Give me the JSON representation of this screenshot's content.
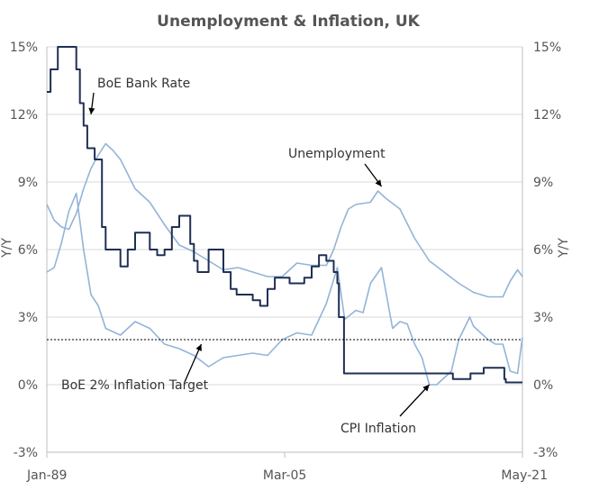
{
  "chart_data": {
    "type": "line",
    "title": "Unemployment & Inflation, UK",
    "ylabel_left": "Y/Y",
    "ylabel_right": "Y/Y",
    "ylim": [
      -3,
      15
    ],
    "yticks": [
      -3,
      0,
      3,
      6,
      9,
      12,
      15
    ],
    "ytick_labels": [
      "-3%",
      "0%",
      "3%",
      "6%",
      "9%",
      "12%",
      "15%"
    ],
    "xlim": [
      1989.0,
      2021.33
    ],
    "xtick_positions": [
      1989.0,
      2005.17,
      2021.33
    ],
    "xtick_labels": [
      "Jan-89",
      "Mar-05",
      "May-21"
    ],
    "grid": "horizontal",
    "series": [
      {
        "name": "Unemployment",
        "color": "#93b4d8",
        "x": [
          1989.0,
          1989.5,
          1990.0,
          1990.5,
          1991.0,
          1991.5,
          1992.0,
          1992.5,
          1993.0,
          1993.5,
          1994.0,
          1995.0,
          1996.0,
          1997.0,
          1998.0,
          1999.0,
          2000.0,
          2001.0,
          2002.0,
          2003.0,
          2004.0,
          2005.0,
          2006.0,
          2007.0,
          2008.0,
          2008.5,
          2009.0,
          2009.5,
          2010.0,
          2011.0,
          2011.5,
          2012.0,
          2013.0,
          2014.0,
          2015.0,
          2016.0,
          2017.0,
          2018.0,
          2019.0,
          2020.0,
          2020.5,
          2021.0,
          2021.33
        ],
        "values": [
          8.0,
          7.3,
          7.0,
          6.9,
          7.6,
          8.7,
          9.6,
          10.2,
          10.7,
          10.4,
          10.0,
          8.7,
          8.1,
          7.1,
          6.2,
          5.9,
          5.5,
          5.1,
          5.2,
          5.0,
          4.8,
          4.8,
          5.4,
          5.3,
          5.3,
          6.0,
          7.0,
          7.8,
          8.0,
          8.1,
          8.6,
          8.3,
          7.8,
          6.5,
          5.5,
          5.0,
          4.5,
          4.1,
          3.9,
          3.9,
          4.6,
          5.1,
          4.8
        ]
      },
      {
        "name": "CPI Inflation",
        "color": "#93b4d8",
        "x": [
          1989.0,
          1989.5,
          1990.0,
          1990.5,
          1991.0,
          1991.5,
          1992.0,
          1992.5,
          1993.0,
          1994.0,
          1995.0,
          1996.0,
          1997.0,
          1998.0,
          1999.0,
          2000.0,
          2001.0,
          2002.0,
          2003.0,
          2004.0,
          2005.0,
          2006.0,
          2007.0,
          2008.0,
          2008.75,
          2009.25,
          2010.0,
          2010.5,
          2011.0,
          2011.75,
          2012.5,
          2013.0,
          2013.5,
          2014.0,
          2014.5,
          2015.0,
          2015.5,
          2016.0,
          2016.5,
          2017.0,
          2017.75,
          2018.0,
          2019.0,
          2019.5,
          2020.0,
          2020.5,
          2021.0,
          2021.33
        ],
        "values": [
          5.0,
          5.2,
          6.3,
          7.7,
          8.5,
          6.0,
          4.0,
          3.5,
          2.5,
          2.2,
          2.8,
          2.5,
          1.8,
          1.6,
          1.3,
          0.8,
          1.2,
          1.3,
          1.4,
          1.3,
          2.0,
          2.3,
          2.2,
          3.6,
          5.2,
          2.9,
          3.3,
          3.2,
          4.5,
          5.2,
          2.5,
          2.8,
          2.7,
          1.8,
          1.2,
          0.0,
          0.0,
          0.3,
          0.6,
          2.0,
          3.0,
          2.6,
          2.0,
          1.8,
          1.8,
          0.6,
          0.5,
          2.1
        ]
      },
      {
        "name": "BoE Bank Rate",
        "color": "#1f2f55",
        "x": [
          1989.0,
          1989.25,
          1989.75,
          1990.75,
          1991.0,
          1991.25,
          1991.5,
          1991.75,
          1992.25,
          1992.75,
          1993.0,
          1993.5,
          1994.0,
          1994.5,
          1995.0,
          1996.0,
          1996.5,
          1997.0,
          1997.5,
          1998.0,
          1998.75,
          1999.0,
          1999.25,
          2000.0,
          2001.0,
          2001.5,
          2001.9,
          2002.0,
          2003.0,
          2003.5,
          2004.0,
          2004.5,
          2005.0,
          2005.5,
          2006.0,
          2006.5,
          2007.0,
          2007.5,
          2008.0,
          2008.5,
          2008.75,
          2008.85,
          2009.2,
          2016.6,
          2017.8,
          2018.7,
          2020.1,
          2020.2,
          2021.33
        ],
        "values": [
          13.0,
          14.0,
          15.0,
          15.0,
          14.0,
          12.5,
          11.5,
          10.5,
          10.0,
          7.0,
          6.0,
          6.0,
          5.25,
          6.0,
          6.75,
          6.0,
          5.75,
          6.0,
          7.0,
          7.5,
          6.25,
          5.5,
          5.0,
          6.0,
          5.0,
          4.25,
          4.0,
          4.0,
          3.75,
          3.5,
          4.25,
          4.75,
          4.75,
          4.5,
          4.5,
          4.75,
          5.25,
          5.75,
          5.5,
          5.0,
          4.5,
          3.0,
          0.5,
          0.25,
          0.5,
          0.75,
          0.25,
          0.1,
          0.1
        ]
      },
      {
        "name": "BoE 2% Inflation Target",
        "color": "#000000",
        "dashed": true,
        "x": [
          1989.0,
          2021.33
        ],
        "values": [
          2.0,
          2.0
        ]
      }
    ],
    "annotations": [
      {
        "label": "BoE Bank Rate",
        "target_x": 1992.0,
        "target_y": 12.0
      },
      {
        "label": "Unemployment",
        "target_x": 2011.75,
        "target_y": 8.8
      },
      {
        "label": "BoE 2% Inflation Target",
        "target_x": 1999.5,
        "target_y": 1.8
      },
      {
        "label": "CPI Inflation",
        "target_x": 2015.0,
        "target_y": 0.0
      }
    ]
  }
}
